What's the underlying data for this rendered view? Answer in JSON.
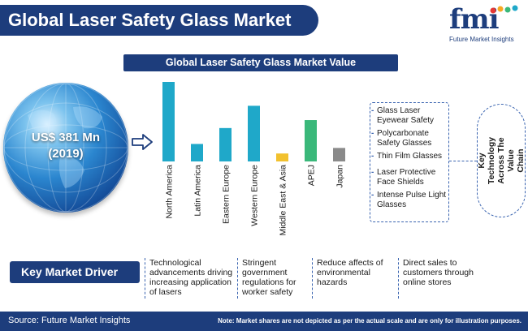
{
  "header": {
    "title": "Global Laser Safety Glass Market",
    "logo_text": "fmi",
    "logo_subtitle": "Future Market Insights"
  },
  "chart_data": {
    "type": "bar",
    "title": "Global Laser Safety Glass Market Value",
    "categories": [
      "North America",
      "Latin America",
      "Eastern Europe",
      "Western Europe",
      "Middle East & Asia",
      "APEJ",
      "Japan"
    ],
    "values": [
      100,
      22,
      42,
      70,
      10,
      52,
      17
    ],
    "bar_color": "#1fa8c9"
  },
  "globe": {
    "value": "US$ 381 Mn",
    "year": "(2019)"
  },
  "value_chain": {
    "label": "Key Technology Across The Value Chain",
    "items": [
      "Glass Laser Eyewear Safety",
      "Polycarbonate Safety Glasses",
      "Thin Film Glasses",
      "Laser Protective Face Shields",
      "Intense Pulse Light Glasses"
    ]
  },
  "drivers": {
    "label": "Key Market Driver",
    "items": [
      "Technological advancements driving increasing application of lasers",
      "Stringent government regulations for worker safety",
      "Reduce affects of environmental hazards",
      "Direct sales to customers through online stores"
    ]
  },
  "footer": {
    "source": "Source: Future Market Insights",
    "note": "Note: Market shares are not depicted as per the actual scale and are only for illustration purposes."
  },
  "colors": {
    "primary": "#1d3d7c",
    "accent": "#1fa8c9",
    "bars": [
      "#1fa8c9",
      "#1fa8c9",
      "#1fa8c9",
      "#1fa8c9",
      "#f2c12e",
      "#3ab87a",
      "#8a8a8a"
    ]
  }
}
